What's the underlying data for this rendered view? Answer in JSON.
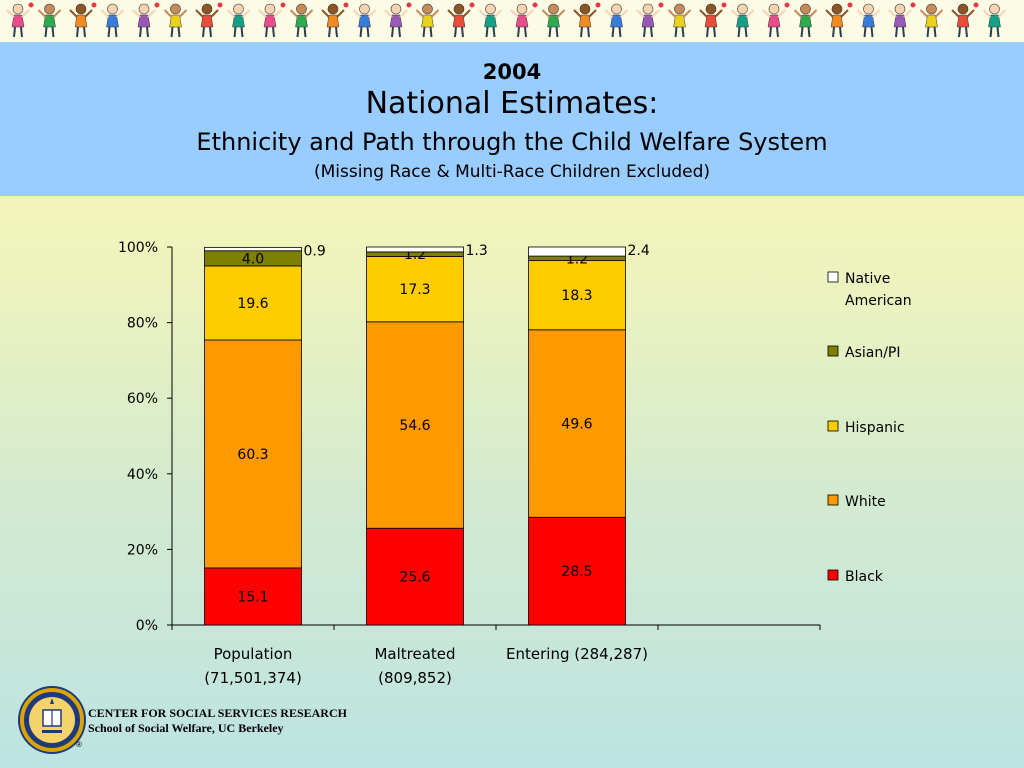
{
  "header": {
    "year": "2004",
    "title": "National Estimates:",
    "subtitle": "Ethnicity and Path through the Child Welfare System",
    "note": "(Missing Race & Multi-Race Children Excluded)"
  },
  "footer": {
    "line1": "CENTER FOR SOCIAL SERVICES RESEARCH",
    "line2": "School of Social Welfare, UC Berkeley",
    "registered": "®"
  },
  "chart_data": {
    "type": "bar",
    "stacked": true,
    "percent": true,
    "categories": [
      "Population (71,501,374)",
      "Maltreated (809,852)",
      "Entering (284,287)"
    ],
    "category_lines": [
      [
        "Population",
        "(71,501,374)"
      ],
      [
        "Maltreated",
        "(809,852)"
      ],
      [
        "Entering (284,287)"
      ]
    ],
    "series": [
      {
        "name": "Black",
        "color": "#ff0000",
        "values": [
          15.1,
          25.6,
          28.5
        ],
        "labels": [
          "15.1",
          "25.6",
          "28.5"
        ]
      },
      {
        "name": "White",
        "color": "#ff9900",
        "values": [
          60.3,
          54.6,
          49.6
        ],
        "labels": [
          "60.3",
          "54.6",
          "49.6"
        ]
      },
      {
        "name": "Hispanic",
        "color": "#ffcc00",
        "values": [
          19.6,
          17.3,
          18.3
        ],
        "labels": [
          "19.6",
          "17.3",
          "18.3"
        ]
      },
      {
        "name": "Asian/PI",
        "color": "#808000",
        "values": [
          4.0,
          1.2,
          1.2
        ],
        "labels": [
          "4.0",
          "1.2",
          "1.2"
        ]
      },
      {
        "name": "Native American",
        "color": "#ffffff",
        "values": [
          0.9,
          1.3,
          2.4
        ],
        "labels": [
          "0.9",
          "1.3",
          "2.4"
        ]
      }
    ],
    "legend_order": [
      "Native American",
      "Asian/PI",
      "Hispanic",
      "White",
      "Black"
    ],
    "legend_lines": {
      "Native American": [
        "Native",
        "American"
      ]
    },
    "yticks": [
      "0%",
      "20%",
      "40%",
      "60%",
      "80%",
      "100%"
    ],
    "ylim": [
      0,
      100
    ],
    "legend_position": "right",
    "grid": false
  }
}
